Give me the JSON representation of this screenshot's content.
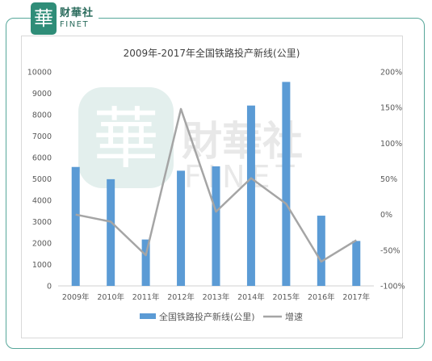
{
  "brand": {
    "logo_char": "華",
    "name_cn": "财華社",
    "name_en": "FINET"
  },
  "watermark": {
    "logo_char": "華",
    "name_cn": "財華社",
    "name_en": "FINET"
  },
  "chart_data": {
    "type": "bar",
    "title": "2009年-2017年全国铁路投产新线(公里)",
    "categories": [
      "2009年",
      "2010年",
      "2011年",
      "2012年",
      "2013年",
      "2014年",
      "2015年",
      "2016年",
      "2017年"
    ],
    "series": [
      {
        "name": "全国铁路投产新线(公里)",
        "type": "bar",
        "axis": "left",
        "color": "#5b9bd5",
        "values": [
          5557,
          4986,
          2167,
          5382,
          5586,
          8427,
          9531,
          3281,
          2100
        ]
      },
      {
        "name": "增速",
        "type": "line",
        "axis": "right",
        "color": "#a5a5a5",
        "values": [
          0.0,
          -0.1,
          -0.57,
          1.48,
          0.04,
          0.51,
          0.15,
          -0.66,
          -0.36
        ]
      }
    ],
    "y_left": {
      "min": 0,
      "max": 10000,
      "step": 1000,
      "tick_labels": [
        "0",
        "1000",
        "2000",
        "3000",
        "4000",
        "5000",
        "6000",
        "7000",
        "8000",
        "9000",
        "10000"
      ]
    },
    "y_right": {
      "min": -1.0,
      "max": 2.0,
      "step": 0.5,
      "tick_labels": [
        "-100%",
        "-50%",
        "0%",
        "50%",
        "100%",
        "150%",
        "200%"
      ]
    },
    "grid": false,
    "legend": "bottom"
  }
}
